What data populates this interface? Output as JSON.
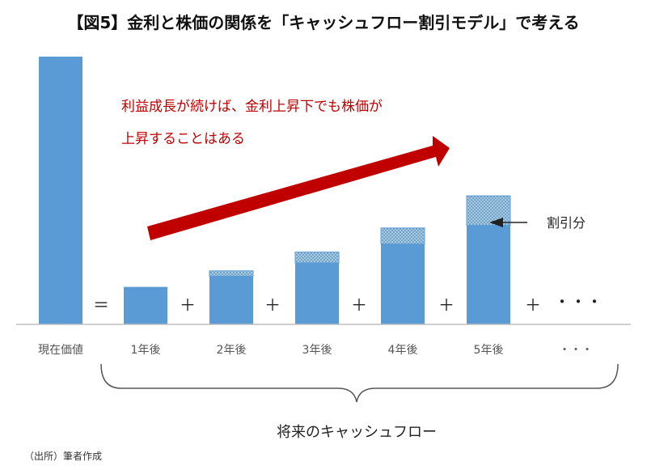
{
  "title": "【図5】金利と株価の関係を「キャッシュフロー割引モデル」で考える",
  "source": "（出所）筆者作成",
  "chart_data": {
    "type": "bar",
    "categories": [
      "現在価値",
      "1年後",
      "2年後",
      "3年後",
      "4年後",
      "5年後",
      "・・・"
    ],
    "series": [
      {
        "values": [
          100,
          14,
          18,
          23,
          30,
          37,
          null
        ]
      },
      {
        "values": [
          0,
          0,
          2,
          4,
          6,
          11,
          null
        ]
      }
    ],
    "ylim": [
      0,
      100
    ],
    "grid": false,
    "operators": [
      "＝",
      "＋",
      "＋",
      "＋",
      "＋",
      "＋"
    ],
    "trailing_dots": "・・・",
    "annotations": {
      "growth_line1": "利益成長が続けば、金利上昇下でも株価が",
      "growth_line2": "上昇することはある",
      "discount_label": "割引分",
      "future_cashflows_label": "将来のキャッシュフロー"
    },
    "colors": {
      "bar": "#5b9bd5",
      "discount_fill": "#a9cce3",
      "discount_dot": "#2e6da4",
      "arrow": "#c00000",
      "axis": "#bfbfbf"
    }
  }
}
